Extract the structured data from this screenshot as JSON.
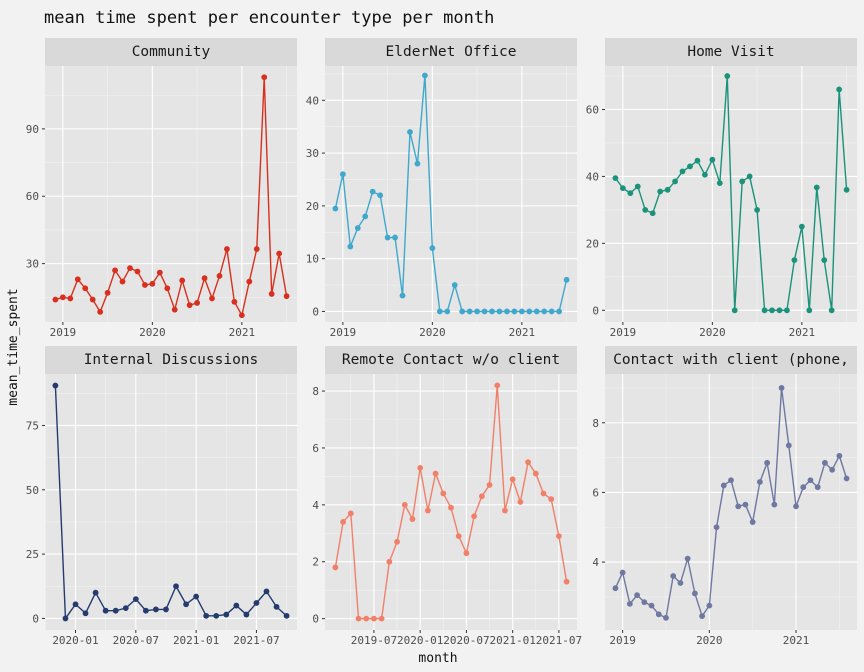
{
  "chart_data": {
    "type": "line",
    "title": "mean time spent per encounter type per month",
    "xlabel": "month",
    "ylabel": "mean_time_spent",
    "grid": true,
    "panels": [
      {
        "name": "Community",
        "color": "#d7301f",
        "x_start": "2018-12",
        "values": [
          14,
          15,
          14.5,
          23,
          19,
          14,
          8.5,
          17,
          27,
          22,
          28,
          26.5,
          20.5,
          21,
          26,
          19,
          9.5,
          22.5,
          11.5,
          12.5,
          23.5,
          14.5,
          24.5,
          36.5,
          13,
          7,
          22,
          36.5,
          113,
          16.5,
          34.5,
          15.5
        ],
        "xticks": [
          {
            "label": "2019",
            "date": "2019-01"
          },
          {
            "label": "2020",
            "date": "2020-01"
          },
          {
            "label": "2021",
            "date": "2021-01"
          }
        ],
        "yticks": [
          30,
          60,
          90
        ],
        "ylim": [
          4,
          118
        ]
      },
      {
        "name": "ElderNet Office",
        "color": "#3fa8cc",
        "x_start": "2018-12",
        "values": [
          19.5,
          26,
          12.3,
          15.8,
          18,
          22.7,
          22,
          14,
          14,
          3,
          34,
          28,
          44.7,
          12,
          0,
          0,
          5,
          0,
          0,
          0,
          0,
          0,
          0,
          0,
          0,
          0,
          0,
          0,
          0,
          0,
          0,
          6
        ],
        "xticks": [
          {
            "label": "2019",
            "date": "2019-01"
          },
          {
            "label": "2020",
            "date": "2020-01"
          },
          {
            "label": "2021",
            "date": "2021-01"
          }
        ],
        "yticks": [
          0,
          10,
          20,
          30,
          40
        ],
        "ylim": [
          -2,
          46.5
        ]
      },
      {
        "name": "Home Visit",
        "color": "#1a937a",
        "x_start": "2018-12",
        "values": [
          39.5,
          36.5,
          35,
          37,
          30,
          29,
          35.5,
          36,
          38.5,
          41.5,
          43,
          44.7,
          40.5,
          45,
          38,
          70,
          0,
          38.5,
          40,
          30,
          0,
          0,
          0,
          0,
          15,
          25,
          0,
          36.7,
          15,
          0,
          66,
          36
        ],
        "xticks": [
          {
            "label": "2019",
            "date": "2019-01"
          },
          {
            "label": "2020",
            "date": "2020-01"
          },
          {
            "label": "2021",
            "date": "2021-01"
          }
        ],
        "yticks": [
          0,
          20,
          40,
          60
        ],
        "ylim": [
          -3.5,
          73
        ]
      },
      {
        "name": "Internal Discussions",
        "color": "#253b6e",
        "x_start": "2019-11",
        "values": [
          90.5,
          0,
          5.5,
          2,
          10,
          3,
          3,
          4,
          7.5,
          3,
          3.5,
          3.5,
          12.5,
          5.5,
          8.5,
          1,
          1,
          1.5,
          5,
          1.5,
          6,
          10.5,
          4.5,
          1
        ],
        "xticks": [
          {
            "label": "2020-01",
            "date": "2020-01"
          },
          {
            "label": "2020-07",
            "date": "2020-07"
          },
          {
            "label": "2021-01",
            "date": "2021-01"
          },
          {
            "label": "2021-07",
            "date": "2021-07"
          }
        ],
        "yticks": [
          0,
          25,
          50,
          75
        ],
        "ylim": [
          -4.5,
          95
        ]
      },
      {
        "name": "Remote Contact w/o client",
        "color": "#f0806a",
        "x_start": "2019-02",
        "values": [
          1.8,
          3.4,
          3.7,
          0,
          0,
          0,
          0,
          2,
          2.7,
          4,
          3.5,
          5.3,
          3.8,
          5.1,
          4.4,
          3.9,
          2.9,
          2.3,
          3.6,
          4.3,
          4.7,
          8.2,
          3.8,
          4.9,
          4.1,
          5.5,
          5.1,
          4.4,
          4.2,
          2.9,
          1.3
        ],
        "xticks": [
          {
            "label": "2019-07",
            "date": "2019-07"
          },
          {
            "label": "2020-01",
            "date": "2020-01"
          },
          {
            "label": "2020-07",
            "date": "2020-07"
          },
          {
            "label": "2021-01",
            "date": "2021-01"
          },
          {
            "label": "2021-07",
            "date": "2021-07"
          }
        ],
        "yticks": [
          0,
          2,
          4,
          6,
          8
        ],
        "ylim": [
          -0.4,
          8.6
        ]
      },
      {
        "name": "Contact with client (phone,",
        "color": "#6e78a0",
        "x_start": "2018-12",
        "values": [
          3.25,
          3.7,
          2.8,
          3.05,
          2.85,
          2.75,
          2.5,
          2.4,
          3.6,
          3.4,
          4.1,
          3.1,
          2.45,
          2.75,
          5,
          6.2,
          6.35,
          5.6,
          5.65,
          5.15,
          6.3,
          6.85,
          5.65,
          9,
          7.35,
          5.6,
          6.15,
          6.35,
          6.15,
          6.85,
          6.65,
          7.05,
          6.4
        ],
        "xticks": [
          {
            "label": "2019",
            "date": "2019-01"
          },
          {
            "label": "2020",
            "date": "2020-01"
          },
          {
            "label": "2021",
            "date": "2021-01"
          }
        ],
        "yticks": [
          4,
          6,
          8
        ],
        "ylim": [
          2.05,
          9.4
        ]
      }
    ]
  }
}
